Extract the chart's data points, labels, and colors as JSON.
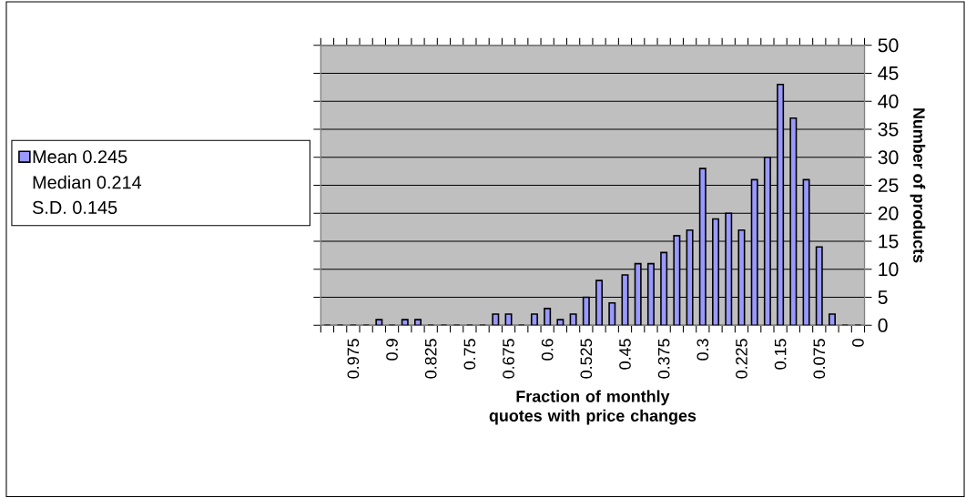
{
  "chart_data": {
    "type": "bar",
    "xlabel": "Fraction of monthly quotes with price changes",
    "ylabel": "Number of products",
    "categories": [
      null,
      null,
      "0.975",
      null,
      null,
      "0.9",
      null,
      null,
      "0.825",
      null,
      null,
      "0.75",
      null,
      null,
      "0.675",
      null,
      null,
      "0.6",
      null,
      null,
      "0.525",
      null,
      null,
      "0.45",
      null,
      null,
      "0.375",
      null,
      null,
      "0.3",
      null,
      null,
      "0.225",
      null,
      null,
      "0.15",
      null,
      null,
      "0.075",
      null,
      null,
      "0"
    ],
    "series": [
      {
        "name": "Mean 0.245",
        "color": "#9999ff",
        "values": [
          0,
          0,
          0,
          0,
          1,
          0,
          1,
          1,
          0,
          0,
          0,
          0,
          0,
          2,
          2,
          0,
          2,
          3,
          1,
          2,
          5,
          8,
          4,
          9,
          11,
          11,
          13,
          16,
          17,
          28,
          19,
          20,
          17,
          26,
          30,
          43,
          37,
          26,
          14,
          2,
          0,
          0
        ]
      }
    ],
    "annotations": [
      "Median 0.214",
      "S.D. 0.145"
    ],
    "ylim": [
      0,
      50
    ],
    "yticks": [
      0,
      5,
      10,
      15,
      20,
      25,
      30,
      35,
      40,
      45,
      50
    ],
    "grid": "y",
    "legend": "left"
  }
}
